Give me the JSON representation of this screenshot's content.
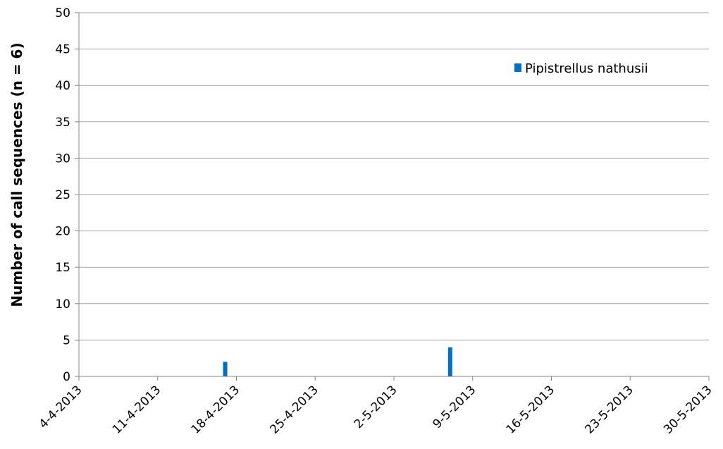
{
  "chart_data": {
    "type": "bar",
    "title": "",
    "xlabel": "",
    "ylabel": "Number of call sequences (n = 6)",
    "ylim": [
      0,
      50
    ],
    "yticks": [
      "0",
      "5",
      "10",
      "15",
      "20",
      "25",
      "30",
      "35",
      "40",
      "45",
      "50"
    ],
    "xlim": [
      "2013-04-04",
      "2013-05-30"
    ],
    "xticks": [
      "4-4-2013",
      "11-4-2013",
      "18-4-2013",
      "25-4-2013",
      "2-5-2013",
      "9-5-2013",
      "16-5-2013",
      "23-5-2013",
      "30-5-2013"
    ],
    "grid": true,
    "legend_position": "top-right",
    "series": [
      {
        "name": "Pipistrellus nathusii",
        "color": "#0070C0",
        "points": [
          {
            "date": "2013-04-17",
            "value": 2
          },
          {
            "date": "2013-05-07",
            "value": 4
          }
        ]
      }
    ]
  }
}
